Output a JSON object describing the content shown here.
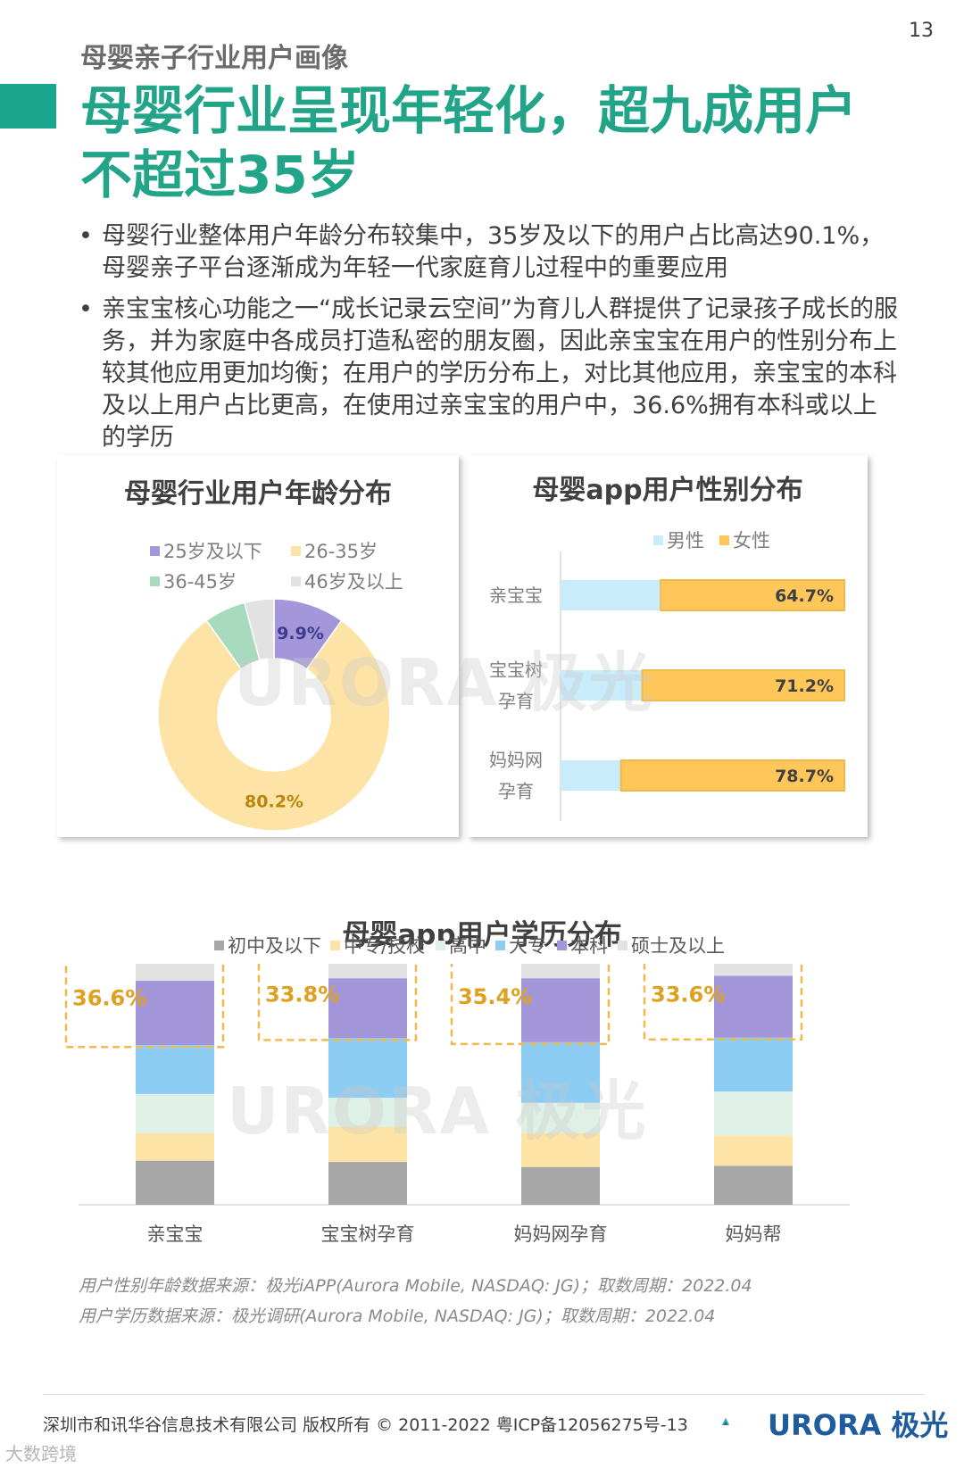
{
  "page_number": "13",
  "section_title": "母婴亲子行业用户画像",
  "headline_line1": "母婴行业呈现年轻化，超九成用户",
  "headline_line2": "不超过35岁",
  "bullet_symbol": "•",
  "bullets": [
    "母婴行业整体用户年龄分布较集中，35岁及以下的用户占比高达90.1%，母婴亲子平台逐渐成为年轻一代家庭育儿过程中的重要应用",
    "亲宝宝核心功能之一“成长记录云空间”为育儿人群提供了记录孩子成长的服务，并为家庭中各成员打造私密的朋友圈，因此亲宝宝在用户的性别分布上较其他应用更加均衡；在用户的学历分布上，对比其他应用，亲宝宝的本科及以上用户占比更高，在使用过亲宝宝的用户中，36.6%拥有本科或以上的学历"
  ],
  "watermark_text": "URORA 极光",
  "colors": {
    "accent_green": "#1aa58f",
    "headline_green": "#22a488",
    "purple": "#a497d9",
    "yellow": "#ffc75a",
    "light_yellow": "#fde3a6",
    "light_green": "#a8dbbd",
    "light_gray": "#e2e2e2",
    "light_blue": "#c9ebfa",
    "blue": "#8dcdf3",
    "mint": "#dff1e6",
    "dark_gray": "#a6a6a6",
    "dash_orange": "#f2b94c"
  },
  "chart_data": [
    {
      "type": "pie",
      "title": "母婴行业用户年龄分布",
      "slices": [
        {
          "name": "25岁及以下",
          "value": 9.9,
          "label": "9.9%"
        },
        {
          "name": "26-35岁",
          "value": 80.2,
          "label": "80.2%"
        },
        {
          "name": "36-45岁",
          "value": 5.8,
          "label": ""
        },
        {
          "name": "46岁及以上",
          "value": 4.1,
          "label": ""
        }
      ],
      "legend_position": "top"
    },
    {
      "type": "bar",
      "orientation": "horizontal",
      "stacked": true,
      "title": "母婴app用户性别分布",
      "categories": [
        [
          "亲宝宝"
        ],
        [
          "宝宝树",
          "孕育"
        ],
        [
          "妈妈网",
          "孕育"
        ]
      ],
      "series": [
        {
          "name": "男性",
          "values": [
            35.3,
            28.8,
            21.3
          ]
        },
        {
          "name": "女性",
          "values": [
            64.7,
            71.2,
            78.7
          ],
          "labels": [
            "64.7%",
            "71.2%",
            "78.7%"
          ]
        }
      ],
      "xlim": [
        0,
        100
      ],
      "legend_position": "top",
      "grid": false
    },
    {
      "type": "bar",
      "stacked": true,
      "title": "母婴app用户学历分布",
      "categories": [
        "亲宝宝",
        "宝宝树孕育",
        "妈妈网孕育",
        "妈妈帮"
      ],
      "series": [
        {
          "name": "初中及以下",
          "values": [
            17.5,
            17.0,
            15.0,
            15.5
          ]
        },
        {
          "name": "中专/技校",
          "values": [
            11.0,
            14.0,
            13.5,
            12.0
          ]
        },
        {
          "name": "高中",
          "values": [
            15.5,
            11.5,
            12.0,
            17.5
          ]
        },
        {
          "name": "大专",
          "values": [
            19.4,
            23.7,
            24.1,
            21.4
          ]
        },
        {
          "name": "本科",
          "values": [
            25.6,
            23.8,
            25.4,
            24.6
          ]
        },
        {
          "name": "硕士及以上",
          "values": [
            11.0,
            10.0,
            10.0,
            9.0
          ]
        }
      ],
      "highlight_labels": [
        "36.6%",
        "33.8%",
        "35.4%",
        "33.6%"
      ],
      "ylim": [
        0,
        100
      ],
      "legend_position": "top",
      "grid": false
    }
  ],
  "sources": [
    "用户性别年龄数据来源：极光iAPP(Aurora Mobile, NASDAQ: JG)；取数周期：2022.04",
    "用户学历数据来源：极光调研(Aurora Mobile, NASDAQ: JG)；取数周期：2022.04"
  ],
  "footer_text": "深圳市和讯华谷信息技术有限公司 版权所有 © 2011-2022 粤ICP备12056275号-13",
  "footer_logo": "URORA 极光",
  "corner_watermark": "大数跨境"
}
